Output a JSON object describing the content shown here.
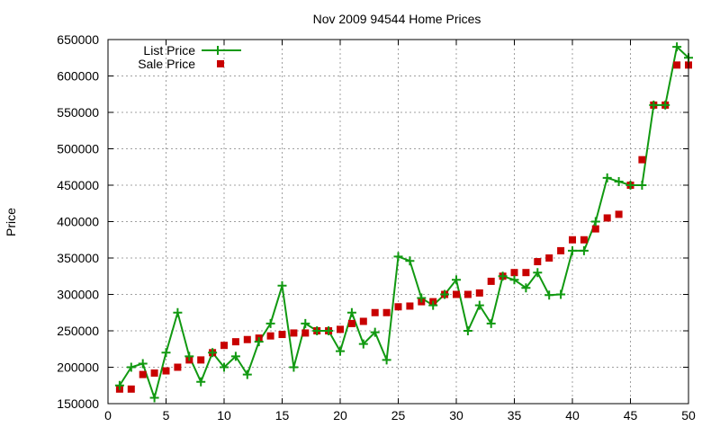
{
  "chart_data": {
    "type": "line",
    "title": "Nov 2009 94544 Home Prices",
    "xlabel": "",
    "ylabel": "Price",
    "xlim": [
      0,
      50
    ],
    "ylim": [
      150000,
      650000
    ],
    "x_ticks": [
      0,
      5,
      10,
      15,
      20,
      25,
      30,
      35,
      40,
      45,
      50
    ],
    "y_ticks": [
      150000,
      200000,
      250000,
      300000,
      350000,
      400000,
      450000,
      500000,
      550000,
      600000,
      650000
    ],
    "grid": true,
    "legend_position": "top-left",
    "series": [
      {
        "name": "List Price",
        "style": "linespoints",
        "color": "#119911",
        "x": [
          1,
          2,
          3,
          4,
          5,
          6,
          7,
          8,
          9,
          10,
          11,
          12,
          13,
          14,
          15,
          16,
          17,
          18,
          19,
          20,
          21,
          22,
          23,
          24,
          25,
          26,
          27,
          28,
          29,
          30,
          31,
          32,
          33,
          34,
          35,
          36,
          37,
          38,
          39,
          40,
          41,
          42,
          43,
          44,
          45,
          46,
          47,
          48,
          49,
          50
        ],
        "values": [
          175000,
          200000,
          205000,
          158000,
          220000,
          275000,
          215000,
          180000,
          220000,
          200000,
          215000,
          190000,
          235000,
          260000,
          312000,
          200000,
          260000,
          250000,
          250000,
          222000,
          275000,
          232000,
          248000,
          210000,
          352000,
          346000,
          295000,
          285000,
          300000,
          320000,
          250000,
          285000,
          260000,
          325000,
          320000,
          309000,
          330000,
          299000,
          300000,
          360000,
          360000,
          400000,
          460000,
          455000,
          450000,
          450000,
          560000,
          560000,
          640000,
          625000
        ]
      },
      {
        "name": "Sale Price",
        "style": "points",
        "color": "#c80000",
        "x": [
          1,
          2,
          3,
          4,
          5,
          6,
          7,
          8,
          9,
          10,
          11,
          12,
          13,
          14,
          15,
          16,
          17,
          18,
          19,
          20,
          21,
          22,
          23,
          24,
          25,
          26,
          27,
          28,
          29,
          30,
          31,
          32,
          33,
          34,
          35,
          36,
          37,
          38,
          39,
          40,
          41,
          42,
          43,
          44,
          45,
          46,
          47,
          48,
          49,
          50
        ],
        "values": [
          170000,
          170000,
          190000,
          192000,
          195000,
          200000,
          210000,
          210000,
          220000,
          230000,
          235000,
          238000,
          240000,
          243000,
          245000,
          247000,
          247000,
          250000,
          250000,
          252000,
          260000,
          263000,
          275000,
          275000,
          283000,
          284000,
          290000,
          290000,
          300000,
          300000,
          300000,
          302000,
          318000,
          325000,
          330000,
          330000,
          345000,
          350000,
          360000,
          375000,
          375000,
          390000,
          405000,
          410000,
          450000,
          485000,
          560000,
          560000,
          615000,
          615000
        ]
      }
    ]
  }
}
